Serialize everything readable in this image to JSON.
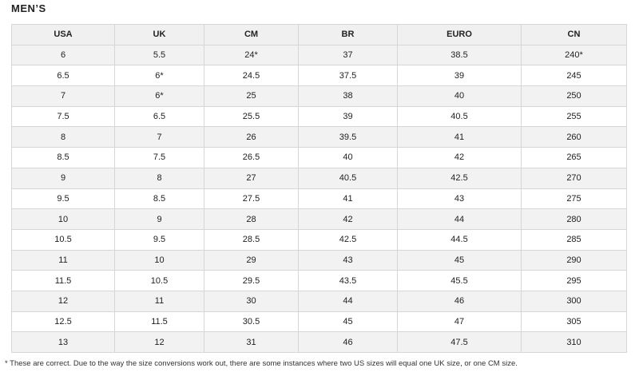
{
  "header": {
    "title": "MEN’S"
  },
  "table": {
    "columns": [
      "USA",
      "UK",
      "CM",
      "BR",
      "EURO",
      "CN"
    ],
    "rows": [
      [
        "6",
        "5.5",
        "24*",
        "37",
        "38.5",
        "240*"
      ],
      [
        "6.5",
        "6*",
        "24.5",
        "37.5",
        "39",
        "245"
      ],
      [
        "7",
        "6*",
        "25",
        "38",
        "40",
        "250"
      ],
      [
        "7.5",
        "6.5",
        "25.5",
        "39",
        "40.5",
        "255"
      ],
      [
        "8",
        "7",
        "26",
        "39.5",
        "41",
        "260"
      ],
      [
        "8.5",
        "7.5",
        "26.5",
        "40",
        "42",
        "265"
      ],
      [
        "9",
        "8",
        "27",
        "40.5",
        "42.5",
        "270"
      ],
      [
        "9.5",
        "8.5",
        "27.5",
        "41",
        "43",
        "275"
      ],
      [
        "10",
        "9",
        "28",
        "42",
        "44",
        "280"
      ],
      [
        "10.5",
        "9.5",
        "28.5",
        "42.5",
        "44.5",
        "285"
      ],
      [
        "11",
        "10",
        "29",
        "43",
        "45",
        "290"
      ],
      [
        "11.5",
        "10.5",
        "29.5",
        "43.5",
        "45.5",
        "295"
      ],
      [
        "12",
        "11",
        "30",
        "44",
        "46",
        "300"
      ],
      [
        "12.5",
        "11.5",
        "30.5",
        "45",
        "47",
        "305"
      ],
      [
        "13",
        "12",
        "31",
        "46",
        "47.5",
        "310"
      ]
    ]
  },
  "footnote": "* These are correct. Due to the way the size conversions work out, there are some instances where two US sizes will equal one UK size, or one CM size."
}
